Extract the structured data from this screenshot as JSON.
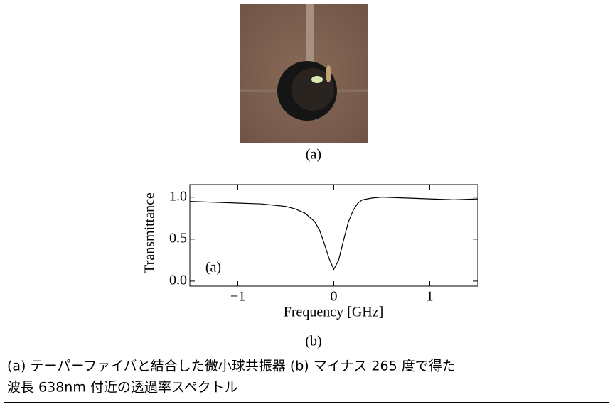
{
  "photo_label": "(a)",
  "chart_data": {
    "type": "line",
    "x_label": "Frequency [GHz]",
    "y_label": "Transmittance",
    "annotation": "(a)",
    "x": [
      -1.5,
      -1.25,
      -1,
      -0.75,
      -0.5,
      -0.4,
      -0.3,
      -0.2,
      -0.15,
      -0.1,
      -0.05,
      0,
      0.05,
      0.1,
      0.15,
      0.2,
      0.25,
      0.3,
      0.4,
      0.5,
      0.75,
      1,
      1.25,
      1.5
    ],
    "values": [
      0.95,
      0.94,
      0.93,
      0.92,
      0.89,
      0.86,
      0.81,
      0.71,
      0.61,
      0.45,
      0.27,
      0.14,
      0.25,
      0.48,
      0.7,
      0.84,
      0.93,
      0.97,
      0.99,
      1.0,
      0.99,
      0.98,
      0.97,
      0.98
    ],
    "color": "#000000",
    "xlim": [
      -1.5,
      1.5
    ],
    "ylim": [
      -0.06,
      1.15
    ],
    "xticks": [
      {
        "value": -1,
        "label": "−1"
      },
      0,
      1
    ],
    "yticks": [
      {
        "value": 0,
        "label": "0.0"
      },
      {
        "value": 0.5,
        "label": "0.5"
      },
      {
        "value": 1,
        "label": "1.0"
      }
    ]
  },
  "chart_label": "(b)",
  "caption": [
    "(a) テーパーファイバと結合した微小球共振器 (b) マイナス 265 度で得た",
    "波長 638nm 付近の透過率スペクトル"
  ]
}
